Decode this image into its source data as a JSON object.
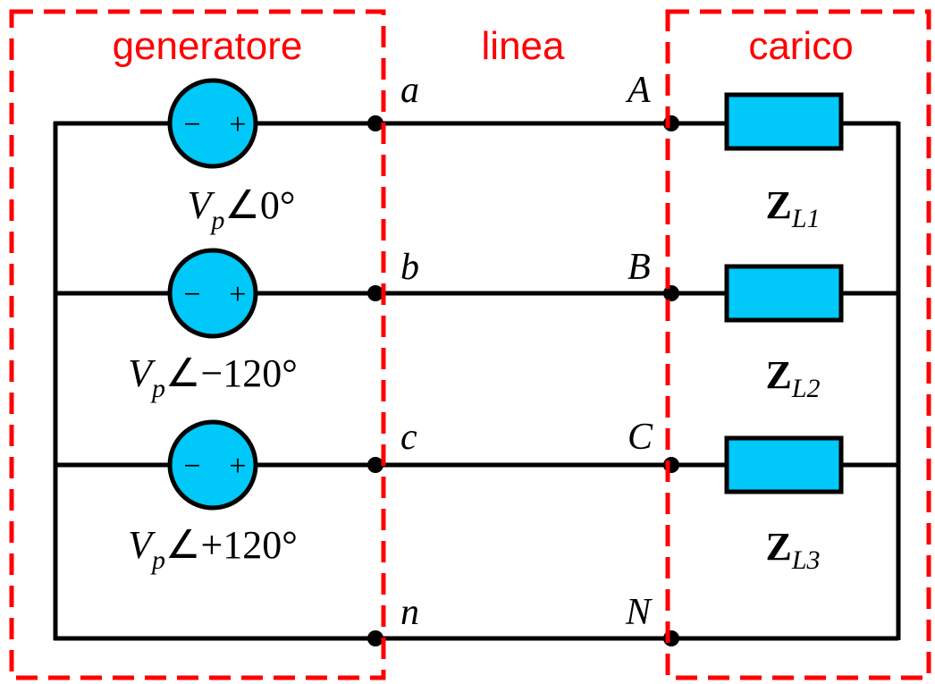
{
  "sections": {
    "generator": "generatore",
    "line": "linea",
    "load": "carico"
  },
  "nodes": {
    "a": "a",
    "b": "b",
    "c": "c",
    "n": "n",
    "A": "A",
    "B": "B",
    "C": "C",
    "N": "N"
  },
  "sources": [
    {
      "mag": "V",
      "sub": "p",
      "angle": "∠0°"
    },
    {
      "mag": "V",
      "sub": "p",
      "angle": "∠−120°"
    },
    {
      "mag": "V",
      "sub": "p",
      "angle": "∠+120°"
    }
  ],
  "loads": [
    {
      "main": "Z",
      "sub": "L1"
    },
    {
      "main": "Z",
      "sub": "L2"
    },
    {
      "main": "Z",
      "sub": "L3"
    }
  ],
  "polarity": {
    "minus": "−",
    "plus": "+"
  },
  "colors": {
    "section_border": "#ff0000",
    "section_text": "#ff0000",
    "source_fill": "#00c8f8",
    "load_fill": "#00c8f8",
    "wire": "#000000"
  }
}
